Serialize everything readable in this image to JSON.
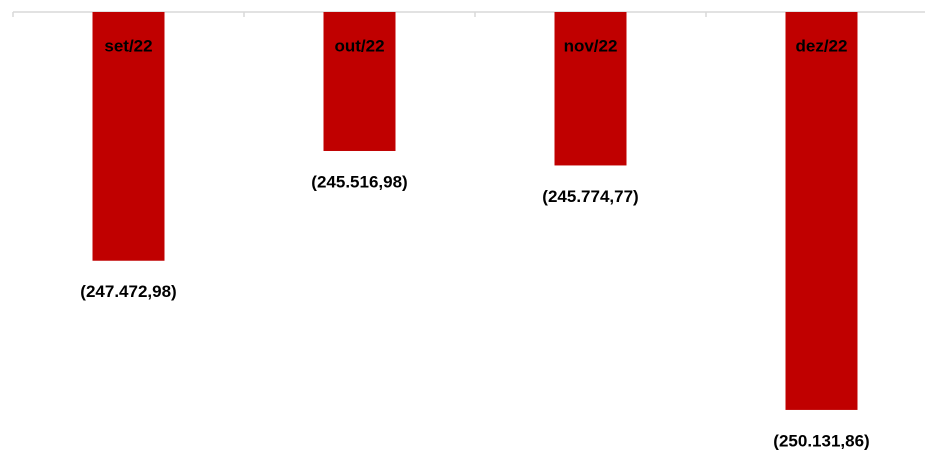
{
  "chart_data": {
    "type": "bar",
    "categories": [
      "set/22",
      "out/22",
      "nov/22",
      "dez/22"
    ],
    "values": [
      -247472.98,
      -245516.98,
      -245774.77,
      -250131.86
    ],
    "value_labels": [
      "(247.472,98)",
      "(245.516,98)",
      "(245.774,77)",
      "(250.131,86)"
    ],
    "color": "#c00000",
    "ylim": [
      -250846,
      -243040
    ]
  }
}
